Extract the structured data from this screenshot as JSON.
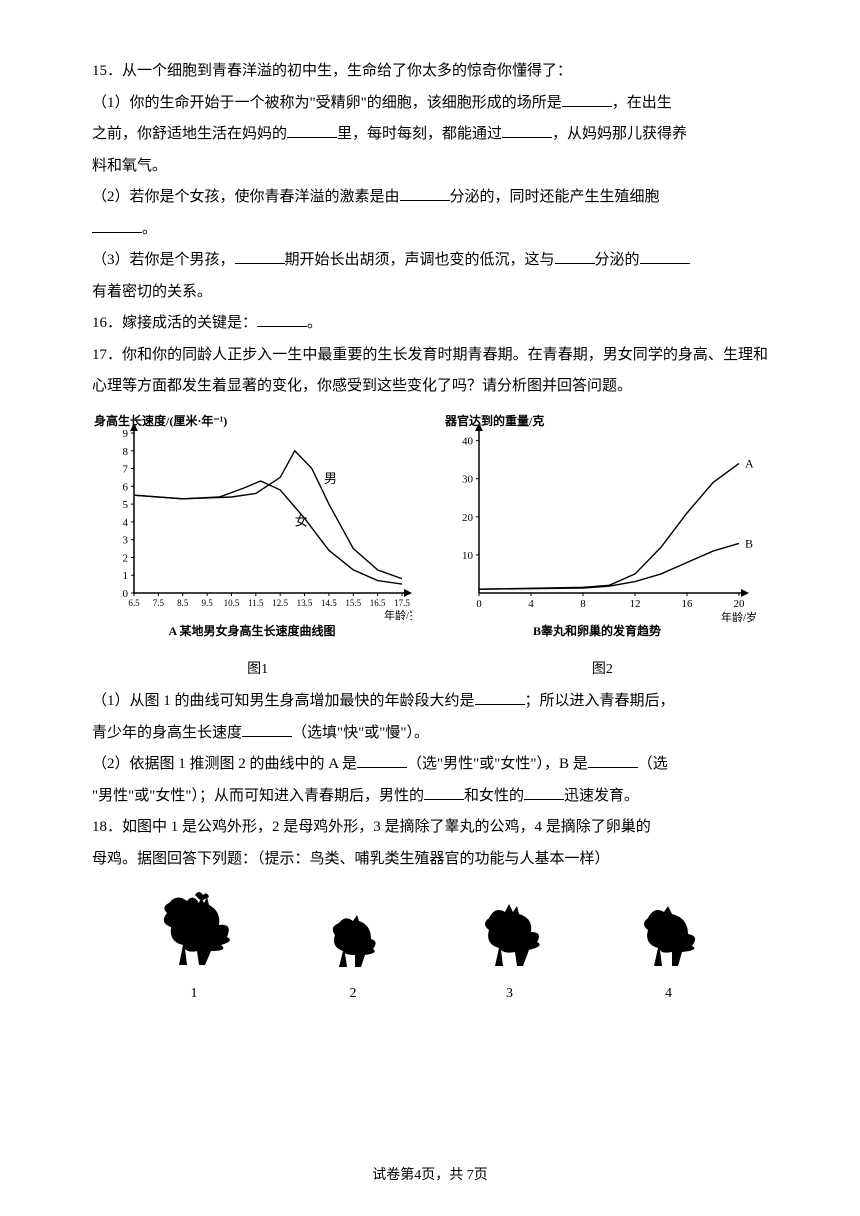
{
  "q15": {
    "intro": "15．从一个细胞到青春洋溢的初中生，生命给了你太多的惊奇你懂得了：",
    "p1a": "（1）你的生命开始于一个被称为\"受精卵\"的细胞，该细胞形成的场所是",
    "p1b": "，在出生",
    "p1c": "之前，你舒适地生活在妈妈的",
    "p1d": "里，每时每刻，都能通过",
    "p1e": "，从妈妈那儿获得养",
    "p1f": "料和氧气。",
    "p2a": "（2）若你是个女孩，使你青春洋溢的激素是由",
    "p2b": "分泌的，同时还能产生生殖细胞",
    "p2c": "。",
    "p3a": "（3）若你是个男孩，",
    "p3b": "期开始长出胡须，声调也变的低沉，这与",
    "p3c": "分泌的",
    "p3d": "有着密切的关系。"
  },
  "q16": {
    "a": "16．嫁接成活的关键是：",
    "b": "。"
  },
  "q17": {
    "intro": "17．你和你的同龄人正步入一生中最重要的生长发育时期青春期。在青春期，男女同学的身高、生理和心理等方面都发生着显著的变化，你感受到这些变化了吗？请分析图并回答问题。",
    "p1a": "（1）从图 1 的曲线可知男生身高增加最快的年龄段大约是",
    "p1b": "；所以进入青春期后，",
    "p1c": "青少年的身高生长速度",
    "p1d": "（选填\"快\"或\"慢\"）。",
    "p2a": "（2）依据图 1 推测图 2 的曲线中的 A 是",
    "p2b": "（选\"男性\"或\"女性\"），B 是",
    "p2c": "（选",
    "p2d": "\"男性\"或\"女性\"）；从而可知进入青春期后，男性的",
    "p2e": "和女性的",
    "p2f": "迅速发育。"
  },
  "q18": {
    "a": "18．如图中 1 是公鸡外形，2 是母鸡外形，3 是摘除了睾丸的公鸡，4 是摘除了卵巢的",
    "b": "母鸡。据图回答下列题：（提示：鸟类、哺乳类生殖器官的功能与人基本一样）",
    "nums": [
      "1",
      "2",
      "3",
      "4"
    ]
  },
  "chart1": {
    "ylabel": "身高生长速度/(厘米·年⁻¹)",
    "xlabel": "年龄/岁",
    "title": "A 某地男女身高生长速度曲线图",
    "sub": "图1",
    "yticks": [
      0,
      1,
      2,
      3,
      4,
      5,
      6,
      7,
      8,
      9
    ],
    "xticks": [
      "6.5",
      "7.5",
      "8.5",
      "9.5",
      "10.5",
      "11.5",
      "12.5",
      "13.5",
      "14.5",
      "15.5",
      "16.5",
      "17.5"
    ],
    "male_label": "男",
    "female_label": "女",
    "male": [
      [
        0,
        5.5
      ],
      [
        2,
        5.3
      ],
      [
        4,
        5.4
      ],
      [
        5,
        5.6
      ],
      [
        6,
        6.5
      ],
      [
        6.6,
        8.0
      ],
      [
        7.3,
        7.0
      ],
      [
        8,
        5.0
      ],
      [
        9,
        2.5
      ],
      [
        10,
        1.3
      ],
      [
        11,
        0.8
      ]
    ],
    "female": [
      [
        0,
        5.5
      ],
      [
        2,
        5.3
      ],
      [
        3.5,
        5.4
      ],
      [
        4.5,
        5.9
      ],
      [
        5.2,
        6.3
      ],
      [
        6,
        5.8
      ],
      [
        7,
        4.2
      ],
      [
        8,
        2.4
      ],
      [
        9,
        1.3
      ],
      [
        10,
        0.7
      ],
      [
        11,
        0.5
      ]
    ],
    "axis_color": "#000",
    "line_color": "#000",
    "font_size": 11
  },
  "chart2": {
    "ylabel": "器官达到的重量/克",
    "xlabel": "年龄/岁",
    "title": "B睾丸和卵巢的发育趋势",
    "sub": "图2",
    "yticks": [
      10,
      20,
      30,
      40
    ],
    "xticks": [
      0,
      4,
      8,
      12,
      16,
      20
    ],
    "labA": "A",
    "labB": "B",
    "A": [
      [
        0,
        1
      ],
      [
        8,
        1.5
      ],
      [
        10,
        2
      ],
      [
        12,
        5
      ],
      [
        14,
        12
      ],
      [
        16,
        21
      ],
      [
        18,
        29
      ],
      [
        20,
        34
      ]
    ],
    "B": [
      [
        0,
        1
      ],
      [
        8,
        1.3
      ],
      [
        10,
        1.8
      ],
      [
        12,
        3
      ],
      [
        14,
        5
      ],
      [
        16,
        8
      ],
      [
        18,
        11
      ],
      [
        20,
        13
      ]
    ],
    "axis_color": "#000",
    "line_color": "#000",
    "font_size": 11
  },
  "footer": "试卷第4页，共 7页"
}
